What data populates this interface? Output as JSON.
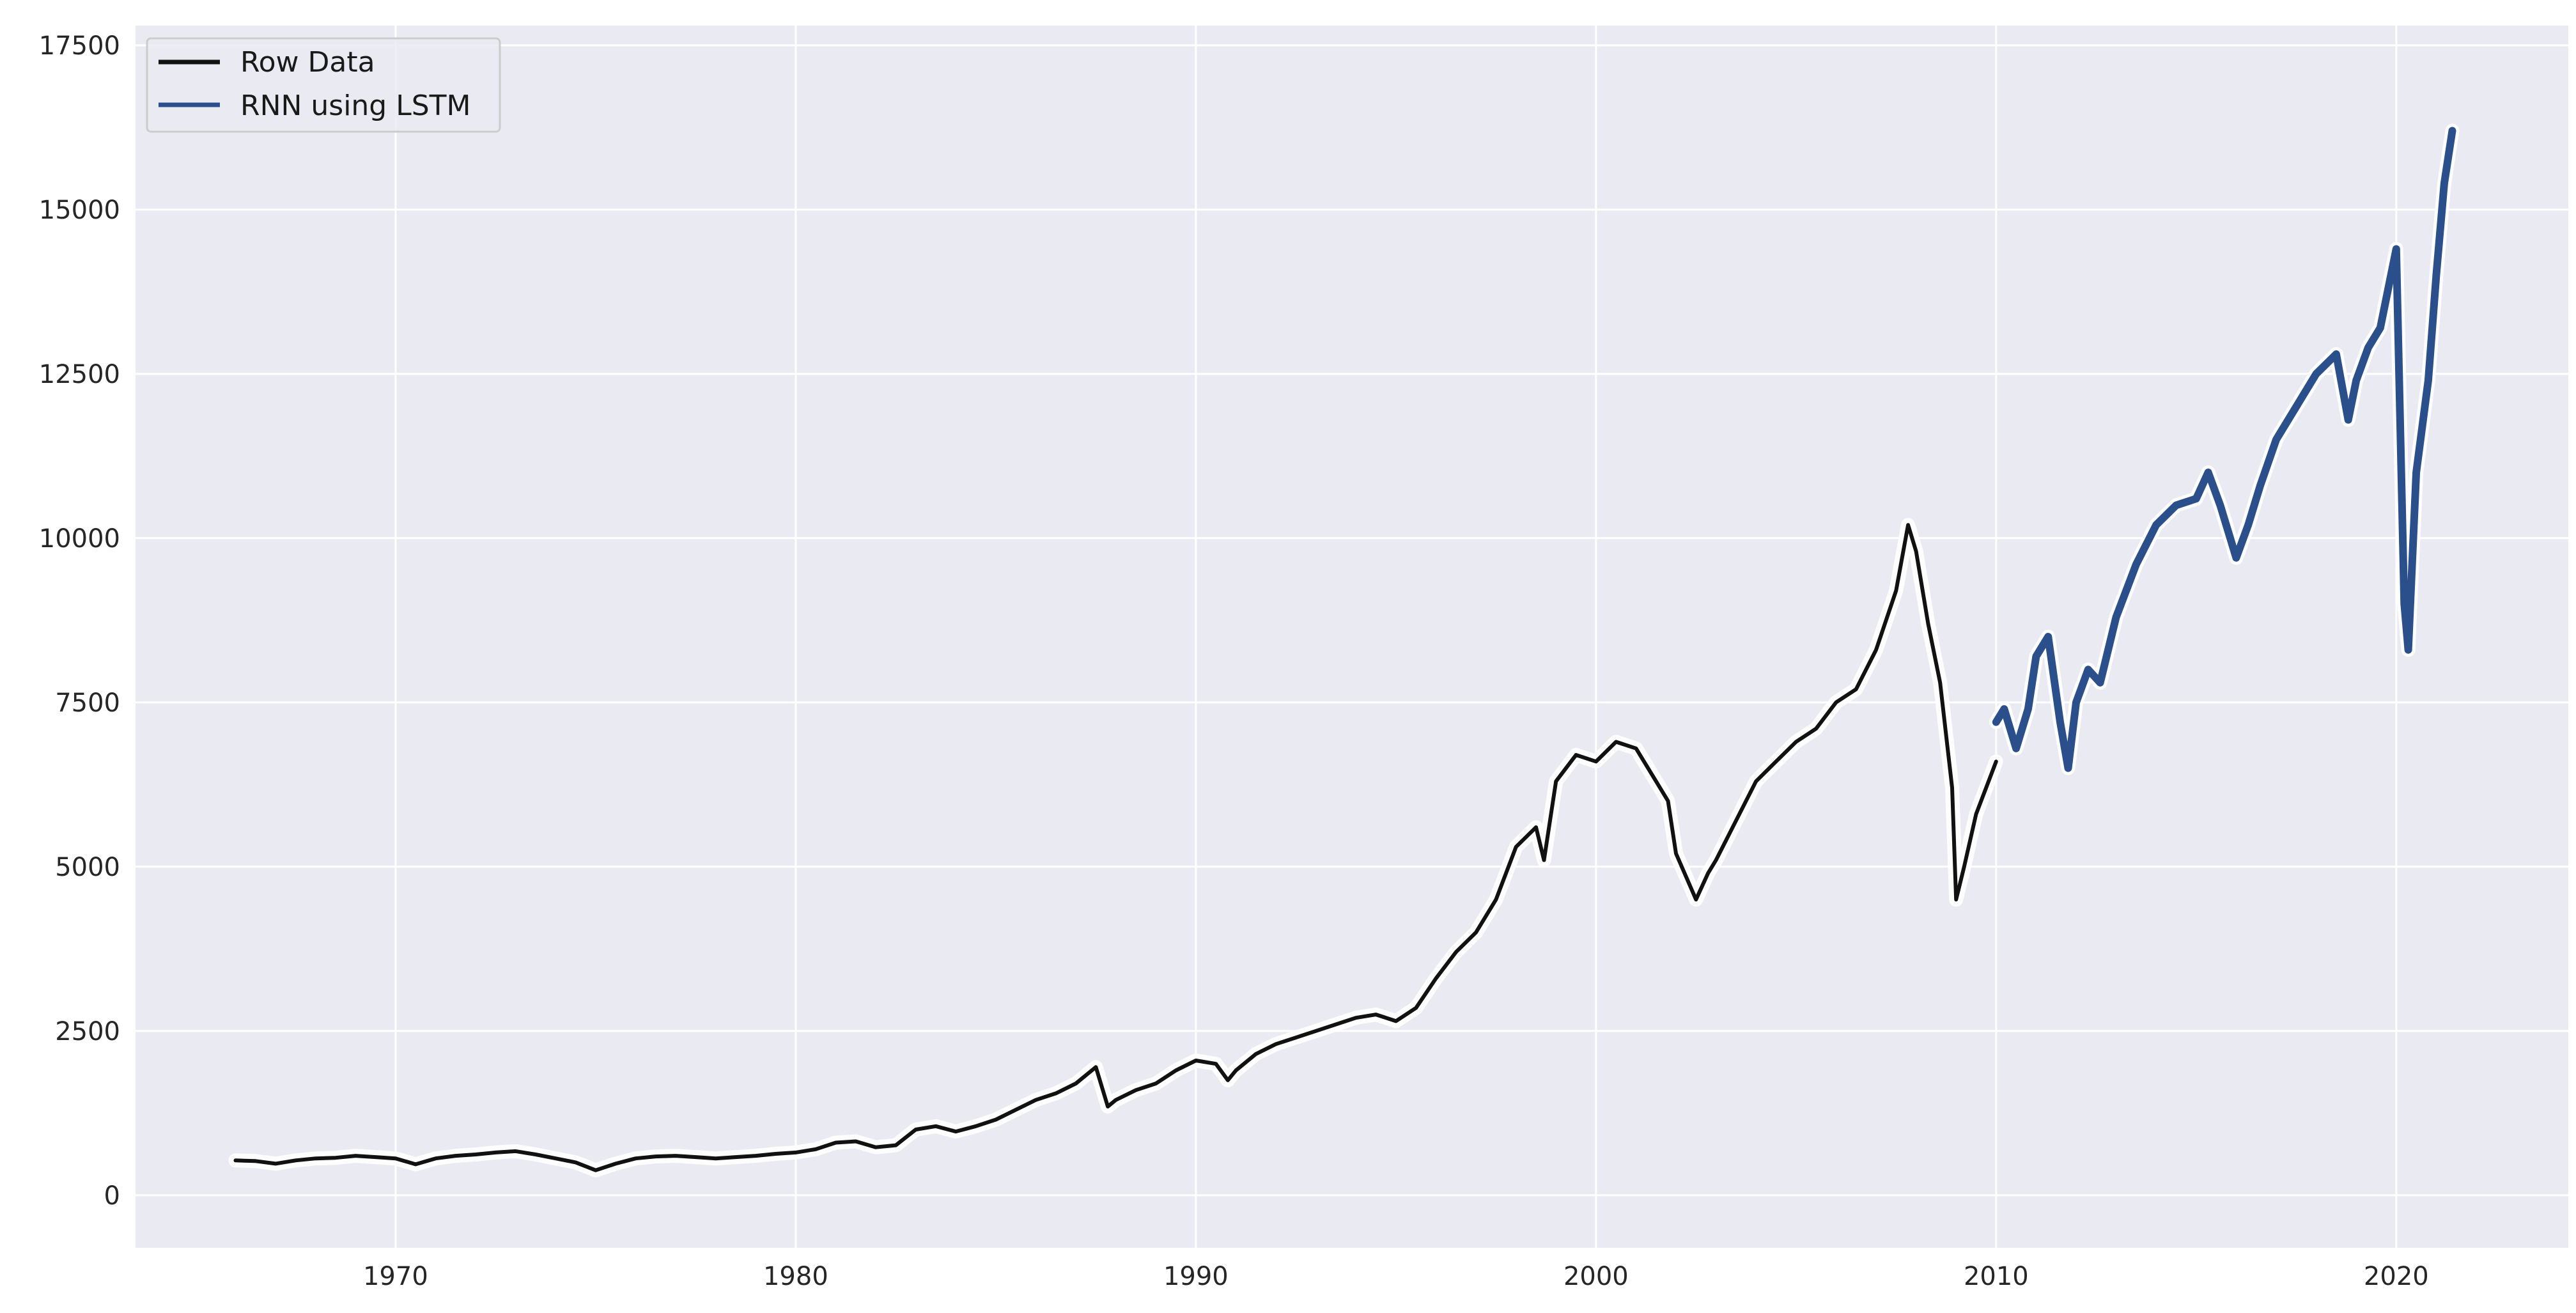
{
  "chart_data": {
    "type": "line",
    "title": "",
    "xlabel": "",
    "ylabel": "",
    "xlim": [
      1963.5,
      2024.3
    ],
    "ylim": [
      -800,
      17800
    ],
    "xticks": [
      1970,
      1980,
      1990,
      2000,
      2010,
      2020
    ],
    "yticks": [
      0,
      2500,
      5000,
      7500,
      10000,
      12500,
      15000,
      17500
    ],
    "grid": true,
    "legend_position": "top-left",
    "background_color": "#eaeaf2",
    "grid_color": "#ffffff",
    "series": [
      {
        "name": "Row Data",
        "color": "#111111",
        "x": [
          1966.0,
          1966.5,
          1967.0,
          1967.5,
          1968.0,
          1968.5,
          1969.0,
          1969.5,
          1970.0,
          1970.5,
          1971.0,
          1971.5,
          1972.0,
          1972.5,
          1973.0,
          1973.5,
          1974.0,
          1974.5,
          1975.0,
          1975.5,
          1976.0,
          1976.5,
          1977.0,
          1977.5,
          1978.0,
          1978.5,
          1979.0,
          1979.5,
          1980.0,
          1980.5,
          1981.0,
          1981.5,
          1982.0,
          1982.5,
          1983.0,
          1983.5,
          1984.0,
          1984.5,
          1985.0,
          1985.5,
          1986.0,
          1986.5,
          1987.0,
          1987.5,
          1987.8,
          1988.0,
          1988.5,
          1989.0,
          1989.5,
          1990.0,
          1990.5,
          1990.8,
          1991.0,
          1991.5,
          1992.0,
          1992.5,
          1993.0,
          1993.5,
          1994.0,
          1994.5,
          1995.0,
          1995.5,
          1996.0,
          1996.5,
          1997.0,
          1997.5,
          1998.0,
          1998.5,
          1998.7,
          1999.0,
          1999.5,
          2000.0,
          2000.5,
          2001.0,
          2001.5,
          2001.8,
          2002.0,
          2002.5,
          2002.8,
          2003.0,
          2003.5,
          2004.0,
          2004.5,
          2005.0,
          2005.5,
          2006.0,
          2006.5,
          2007.0,
          2007.5,
          2007.8,
          2008.0,
          2008.3,
          2008.6,
          2008.9,
          2009.0,
          2009.2,
          2009.5,
          2010.0
        ],
        "values": [
          530,
          520,
          480,
          530,
          560,
          570,
          600,
          580,
          560,
          470,
          560,
          600,
          620,
          650,
          670,
          620,
          560,
          500,
          380,
          480,
          560,
          590,
          600,
          580,
          560,
          580,
          600,
          630,
          650,
          700,
          800,
          820,
          730,
          760,
          1000,
          1050,
          970,
          1050,
          1150,
          1300,
          1450,
          1550,
          1700,
          1950,
          1350,
          1450,
          1600,
          1700,
          1900,
          2050,
          2000,
          1750,
          1900,
          2150,
          2300,
          2400,
          2500,
          2600,
          2700,
          2750,
          2650,
          2850,
          3300,
          3700,
          4000,
          4500,
          5300,
          5600,
          5100,
          6300,
          6700,
          6600,
          6900,
          6800,
          6300,
          6000,
          5200,
          4500,
          4900,
          5100,
          5700,
          6300,
          6600,
          6900,
          7100,
          7500,
          7700,
          8300,
          9200,
          10200,
          9800,
          8700,
          7800,
          6200,
          4500,
          5000,
          5800,
          6600
        ]
      },
      {
        "name": "RNN using LSTM",
        "color": "#2a4f8a",
        "x": [
          2010.0,
          2010.2,
          2010.5,
          2010.8,
          2011.0,
          2011.3,
          2011.6,
          2011.8,
          2012.0,
          2012.3,
          2012.6,
          2013.0,
          2013.5,
          2014.0,
          2014.5,
          2015.0,
          2015.3,
          2015.6,
          2016.0,
          2016.3,
          2016.6,
          2017.0,
          2017.5,
          2018.0,
          2018.5,
          2018.8,
          2019.0,
          2019.3,
          2019.6,
          2020.0,
          2020.2,
          2020.3,
          2020.5,
          2020.8,
          2021.0,
          2021.2,
          2021.4
        ],
        "values": [
          7200,
          7400,
          6800,
          7400,
          8200,
          8500,
          7200,
          6500,
          7500,
          8000,
          7800,
          8800,
          9600,
          10200,
          10500,
          10600,
          11000,
          10500,
          9700,
          10200,
          10800,
          11500,
          12000,
          12500,
          12800,
          11800,
          12400,
          12900,
          13200,
          14400,
          9000,
          8300,
          11000,
          12400,
          14000,
          15400,
          16200
        ]
      }
    ]
  }
}
